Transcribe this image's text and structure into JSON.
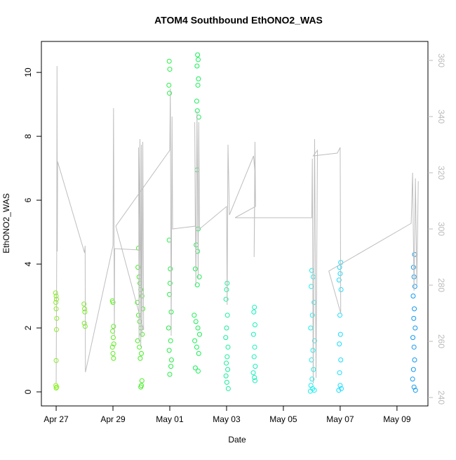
{
  "chart_data": {
    "type": "scatter",
    "title": "ATOM4 Southbound EthONO2_WAS",
    "x_label": "Date",
    "y_label": "EthONO2_WAS",
    "xlim": [
      -0.52,
      13.09
    ],
    "ylim": [
      -0.44,
      10.97
    ],
    "y2lim": [
      237,
      366.75
    ],
    "xticks": [
      {
        "value": 0,
        "label": "Apr 27"
      },
      {
        "value": 2,
        "label": "Apr 29"
      },
      {
        "value": 4,
        "label": "May 01"
      },
      {
        "value": 6,
        "label": "May 03"
      },
      {
        "value": 8,
        "label": "May 05"
      },
      {
        "value": 10,
        "label": "May 07"
      },
      {
        "value": 12,
        "label": "May 09"
      }
    ],
    "yticks": [
      0,
      2,
      4,
      6,
      8,
      10
    ],
    "y2ticks": [
      240,
      260,
      280,
      300,
      320,
      340,
      360
    ],
    "series": [
      {
        "style": "points",
        "color": "#88ee22",
        "x": [
          -0.02,
          0.0,
          0.01,
          -0.01,
          0.0,
          0.02,
          0.01,
          0.0,
          -0.01,
          0.02,
          0.0
        ],
        "values": [
          3.1,
          3.0,
          2.9,
          2.8,
          2.6,
          2.3,
          1.95,
          0.98,
          0.2,
          0.15,
          0.12
        ]
      },
      {
        "style": "points",
        "color": "#77ee22",
        "x": [
          0.98,
          1.0,
          1.01,
          0.99,
          1.02
        ],
        "values": [
          2.75,
          2.6,
          2.5,
          2.15,
          2.05
        ]
      },
      {
        "style": "points",
        "color": "#5eee22",
        "x": [
          1.98,
          2.0,
          2.02,
          1.99,
          2.01,
          2.03,
          1.98,
          2.0,
          2.02
        ],
        "values": [
          2.85,
          2.8,
          2.05,
          1.9,
          1.7,
          1.5,
          1.4,
          1.2,
          1.05
        ]
      },
      {
        "style": "points",
        "color": "#44ee22",
        "x": [
          2.9,
          2.88,
          2.92,
          2.95,
          2.98,
          3.02,
          2.86,
          3.05,
          2.9,
          2.94,
          2.99,
          3.03,
          2.87,
          2.93,
          3.0,
          2.96,
          3.02,
          3.0,
          2.98
        ],
        "values": [
          4.5,
          3.9,
          3.6,
          3.4,
          3.2,
          3.0,
          2.8,
          2.6,
          2.4,
          2.2,
          2.0,
          1.8,
          1.6,
          1.4,
          1.2,
          1.05,
          0.35,
          0.2,
          0.15
        ]
      },
      {
        "style": "points",
        "color": "#22ee44",
        "x": [
          3.98,
          4.0,
          3.97,
          3.99,
          3.98,
          4.02,
          4.01,
          3.99,
          4.05,
          3.96,
          4.03,
          3.98,
          4.06,
          4.04,
          4.0
        ],
        "values": [
          10.35,
          10.1,
          9.6,
          9.35,
          4.75,
          3.85,
          3.4,
          3.05,
          2.5,
          2.0,
          1.6,
          1.3,
          1.0,
          0.8,
          0.55
        ]
      },
      {
        "style": "points",
        "color": "#16ee55",
        "x": [
          4.98,
          5.0,
          4.96,
          5.01,
          4.99,
          4.95,
          4.97,
          5.02,
          4.96,
          5.0,
          4.93,
          4.98,
          4.9,
          5.04,
          4.97,
          4.86,
          4.92,
          4.99,
          5.05,
          4.88,
          4.95,
          5.02,
          4.9,
          5.0
        ],
        "values": [
          10.55,
          10.4,
          10.2,
          9.8,
          9.6,
          9.1,
          8.8,
          8.6,
          6.95,
          5.1,
          4.6,
          4.4,
          3.85,
          3.6,
          3.35,
          2.4,
          2.2,
          2.0,
          1.8,
          1.6,
          1.4,
          1.2,
          0.75,
          0.65
        ]
      },
      {
        "style": "points",
        "color": "#16ee99",
        "x": [
          6.02,
          6.0,
          5.98,
          6.03,
          6.0,
          5.97,
          6.05,
          6.02,
          5.99,
          6.04,
          5.98,
          6.01,
          6.06
        ],
        "values": [
          3.4,
          3.2,
          2.9,
          2.4,
          2.0,
          1.7,
          1.4,
          1.1,
          0.9,
          0.7,
          0.5,
          0.3,
          0.1
        ]
      },
      {
        "style": "points",
        "color": "#16eebb",
        "x": [
          6.98,
          6.96,
          7.0,
          6.95,
          6.99,
          6.97,
          7.01,
          6.94,
          6.98,
          7.0
        ],
        "values": [
          2.65,
          2.5,
          2.1,
          1.8,
          1.4,
          1.1,
          0.8,
          0.6,
          0.45,
          0.35
        ]
      },
      {
        "style": "points",
        "color": "#16eeee",
        "x": [
          9.0,
          9.05,
          8.98,
          9.08,
          9.02,
          8.96,
          9.1,
          9.04,
          8.99,
          9.06,
          9.01,
          8.97,
          9.03,
          9.09,
          8.95
        ],
        "values": [
          3.8,
          3.6,
          3.3,
          2.8,
          2.4,
          2.0,
          1.6,
          1.3,
          1.0,
          0.7,
          0.4,
          0.2,
          0.1,
          0.05,
          0.02
        ]
      },
      {
        "style": "points",
        "color": "#16ddff",
        "x": [
          10.02,
          9.98,
          10.0,
          9.96,
          10.03,
          9.99,
          10.01,
          9.97,
          10.02,
          9.98,
          10.0,
          10.04,
          9.95
        ],
        "values": [
          4.05,
          3.9,
          3.7,
          3.5,
          3.2,
          2.4,
          1.8,
          1.5,
          1.0,
          0.6,
          0.2,
          0.1,
          0.05
        ]
      },
      {
        "style": "points",
        "color": "#1199ee",
        "x": [
          12.62,
          12.58,
          12.6,
          12.63,
          12.57,
          12.61,
          12.59,
          12.64,
          12.56,
          12.6,
          12.62,
          12.58,
          12.55,
          12.6,
          12.65
        ],
        "values": [
          4.3,
          3.9,
          3.6,
          3.3,
          3.0,
          2.6,
          2.3,
          2.0,
          1.7,
          1.4,
          1.0,
          0.7,
          0.4,
          0.15,
          0.05
        ]
      },
      {
        "style": "line",
        "axis": "y2",
        "color": "#bebebe",
        "x": [
          0.0,
          0.02,
          0.03,
          0.04,
          0.05,
          1.0,
          1.02,
          1.03,
          2.0,
          2.02,
          2.05,
          2.06,
          2.95,
          2.9,
          2.92,
          2.95,
          2.98,
          3.0,
          3.02,
          3.05,
          3.08,
          2.1,
          4.0,
          4.02,
          4.05,
          4.08,
          4.1,
          4.9,
          4.88,
          4.92,
          4.96,
          5.0,
          5.02,
          5.05,
          6.0,
          6.02,
          6.05,
          6.1,
          6.95,
          7.0,
          6.97,
          7.0,
          7.02,
          6.3,
          9.0,
          9.02,
          9.05,
          9.1,
          9.15,
          9.2,
          9.05,
          9.9,
          10.0,
          10.02,
          9.6,
          12.5,
          12.55,
          12.6,
          12.65,
          12.7,
          12.75
        ],
        "values": [
          245,
          291,
          358,
          292,
          324,
          291.5,
          294,
          249,
          294,
          343,
          262,
          293,
          292.5,
          329,
          260,
          332,
          258,
          330,
          262,
          331,
          264,
          301,
          328,
          350,
          262,
          340,
          300,
          301,
          338,
          280,
          342,
          282,
          338,
          300,
          308,
          273,
          330,
          305,
          326,
          320,
          290,
          331,
          308,
          304,
          304,
          325,
          245,
          332,
          247,
          328,
          326,
          327,
          329,
          270,
          285,
          302,
          320,
          278,
          318,
          280,
          317
        ]
      }
    ]
  }
}
